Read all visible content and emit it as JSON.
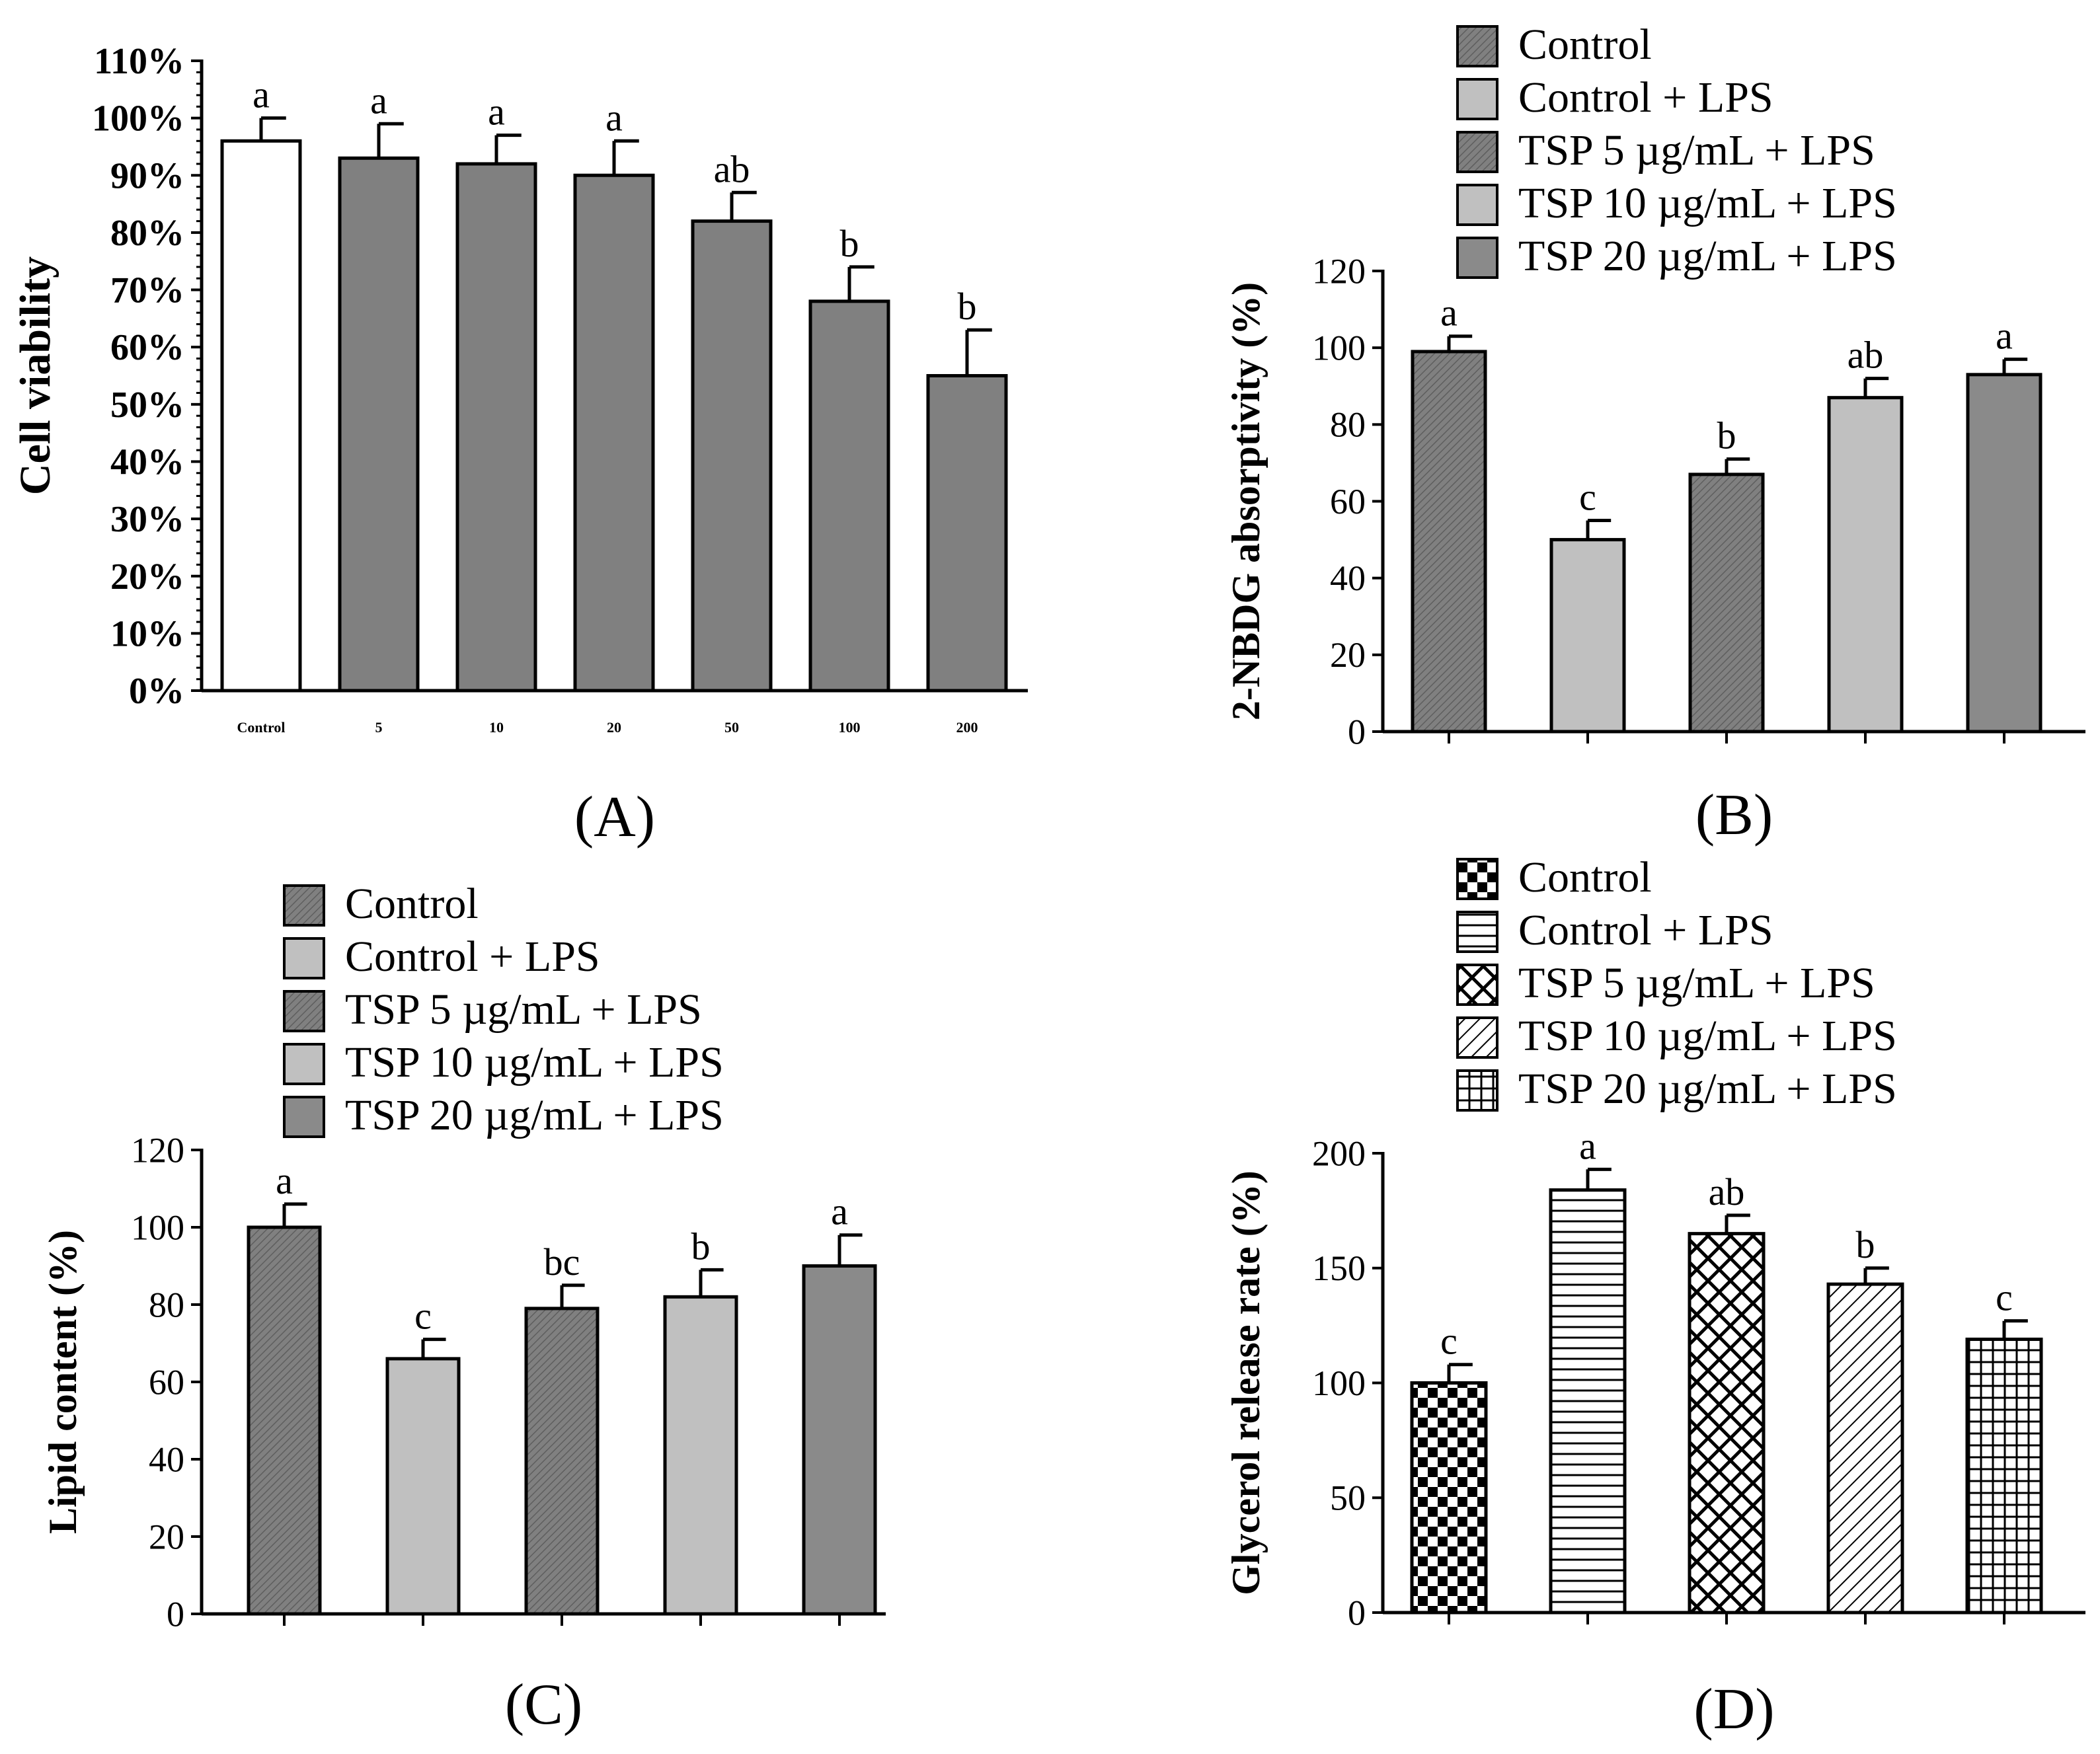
{
  "figure": {
    "panels": [
      "(A)",
      "(B)",
      "(C)",
      "(D)"
    ]
  },
  "legend_series": [
    "Control",
    "Control + LPS",
    "TSP 5 µg/mL + LPS",
    "TSP 10 µg/mL + LPS",
    "TSP 20 µg/mL + LPS"
  ],
  "chart_data": [
    {
      "id": "A",
      "panel_label": "(A)",
      "type": "bar",
      "title": "",
      "xlabel": "",
      "ylabel": "Cell viability",
      "categories": [
        "Control",
        "5",
        "10",
        "20",
        "50",
        "100",
        "200"
      ],
      "values": [
        96,
        93,
        92,
        90,
        82,
        68,
        55
      ],
      "errors": [
        4,
        6,
        5,
        6,
        5,
        6,
        8
      ],
      "significance": [
        "a",
        "a",
        "a",
        "a",
        "ab",
        "b",
        "b"
      ],
      "ylim": [
        0,
        110
      ],
      "yticks": [
        0,
        10,
        20,
        30,
        40,
        50,
        60,
        70,
        80,
        90,
        100,
        110
      ],
      "ytick_labels": [
        "0%",
        "10%",
        "20%",
        "30%",
        "40%",
        "50%",
        "60%",
        "70%",
        "80%",
        "90%",
        "100%",
        "110%"
      ],
      "colors": [
        "#ffffff",
        "#808080",
        "#808080",
        "#808080",
        "#808080",
        "#808080",
        "#808080"
      ],
      "grid": false
    },
    {
      "id": "B",
      "panel_label": "(B)",
      "type": "bar",
      "title": "",
      "xlabel": "",
      "ylabel": "2-NBDG absorptivity (%)",
      "legend": [
        "Control",
        "Control + LPS",
        "TSP 5 µg/mL + LPS",
        "TSP 10 µg/mL + LPS",
        "TSP 20 µg/mL + LPS"
      ],
      "legend_position": "top",
      "categories": [
        "Control",
        "Control + LPS",
        "TSP 5 µg/mL + LPS",
        "TSP 10 µg/mL + LPS",
        "TSP 20 µg/mL + LPS"
      ],
      "values": [
        99,
        50,
        67,
        87,
        93
      ],
      "errors": [
        4,
        5,
        4,
        5,
        4
      ],
      "significance": [
        "a",
        "c",
        "b",
        "ab",
        "a"
      ],
      "ylim": [
        0,
        120
      ],
      "yticks": [
        0,
        20,
        40,
        60,
        80,
        100,
        120
      ],
      "ytick_labels": [
        "0",
        "20",
        "40",
        "60",
        "80",
        "100",
        "120"
      ],
      "colors": [
        "#7a7a7a",
        "#c0c0c0",
        "#7a7a7a",
        "#c0c0c0",
        "#8a8a8a"
      ],
      "fills": [
        "diag",
        "solid",
        "diag",
        "solid",
        "solid"
      ],
      "grid": false
    },
    {
      "id": "C",
      "panel_label": "(C)",
      "type": "bar",
      "title": "",
      "xlabel": "",
      "ylabel": "Lipid content (%)",
      "legend": [
        "Control",
        "Control + LPS",
        "TSP 5 µg/mL + LPS",
        "TSP 10 µg/mL + LPS",
        "TSP 20 µg/mL + LPS"
      ],
      "legend_position": "top",
      "categories": [
        "Control",
        "Control + LPS",
        "TSP 5 µg/mL + LPS",
        "TSP 10 µg/mL + LPS",
        "TSP 20 µg/mL + LPS"
      ],
      "values": [
        100,
        66,
        79,
        82,
        90
      ],
      "errors": [
        6,
        5,
        6,
        7,
        8
      ],
      "significance": [
        "a",
        "c",
        "bc",
        "b",
        "a"
      ],
      "ylim": [
        0,
        120
      ],
      "yticks": [
        0,
        20,
        40,
        60,
        80,
        100,
        120
      ],
      "ytick_labels": [
        "0",
        "20",
        "40",
        "60",
        "80",
        "100",
        "120"
      ],
      "colors": [
        "#7a7a7a",
        "#c0c0c0",
        "#7a7a7a",
        "#c0c0c0",
        "#8a8a8a"
      ],
      "fills": [
        "diag",
        "solid",
        "diag",
        "solid",
        "solid"
      ],
      "grid": false
    },
    {
      "id": "D",
      "panel_label": "(D)",
      "type": "bar",
      "title": "",
      "xlabel": "",
      "ylabel": "Glycerol release rate (%)",
      "legend": [
        "Control",
        "Control + LPS",
        "TSP 5 µg/mL + LPS",
        "TSP 10 µg/mL + LPS",
        "TSP 20 µg/mL + LPS"
      ],
      "legend_position": "top",
      "categories": [
        "Control",
        "Control + LPS",
        "TSP 5 µg/mL + LPS",
        "TSP 10 µg/mL + LPS",
        "TSP 20 µg/mL + LPS"
      ],
      "values": [
        100,
        184,
        165,
        143,
        119
      ],
      "errors": [
        8,
        9,
        8,
        7,
        8
      ],
      "significance": [
        "c",
        "a",
        "ab",
        "b",
        "c"
      ],
      "ylim": [
        0,
        200
      ],
      "yticks": [
        0,
        50,
        100,
        150,
        200
      ],
      "ytick_labels": [
        "0",
        "50",
        "100",
        "150",
        "200"
      ],
      "colors": [
        "#ffffff",
        "#ffffff",
        "#ffffff",
        "#ffffff",
        "#ffffff"
      ],
      "fills": [
        "checker",
        "hlines",
        "crosshatch",
        "diag-wide",
        "grid"
      ],
      "grid": false
    }
  ]
}
